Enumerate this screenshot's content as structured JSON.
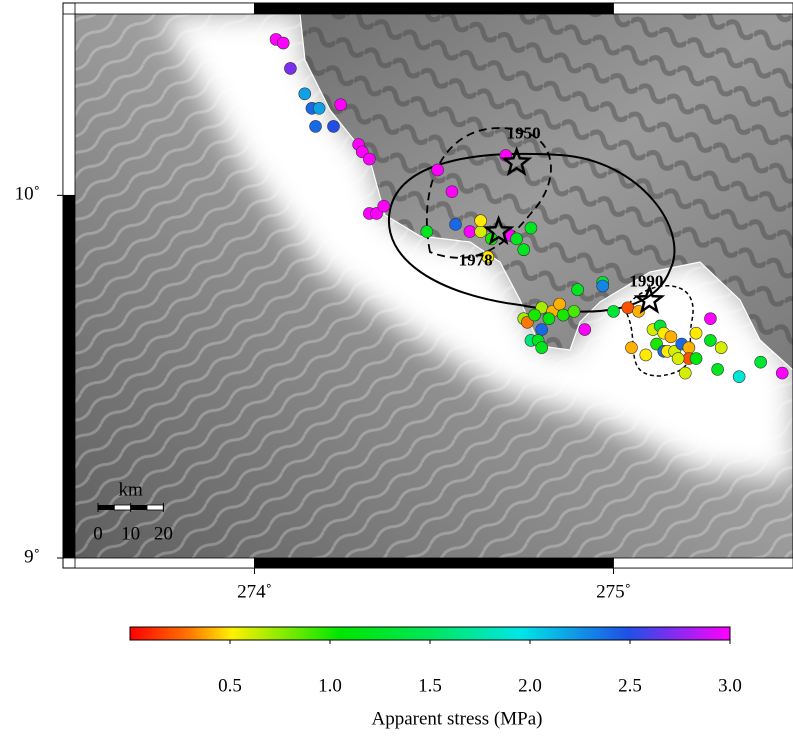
{
  "chart_data": {
    "type": "scatter",
    "xlim": [
      273.5,
      275.5
    ],
    "ylim": [
      9,
      10.5
    ],
    "xticks": [
      {
        "value": 274,
        "label": "274˚"
      },
      {
        "value": 275,
        "label": "275˚"
      }
    ],
    "yticks": [
      {
        "value": 9,
        "label": "9˚"
      },
      {
        "value": 10,
        "label": "10˚"
      }
    ],
    "x": [
      274.06,
      274.08,
      274.1,
      274.14,
      274.16,
      274.18,
      274.17,
      274.22,
      274.24,
      274.29,
      274.3,
      274.32,
      274.32,
      274.34,
      274.36,
      274.51,
      274.55,
      274.7,
      274.56,
      274.48,
      274.6,
      274.63,
      274.63,
      274.66,
      274.71,
      274.73,
      274.75,
      274.77,
      274.65,
      274.97,
      274.9,
      274.97,
      274.8,
      274.83,
      274.85,
      274.86,
      274.89,
      274.75,
      274.76,
      274.78,
      274.8,
      274.82,
      274.77,
      274.79,
      274.8,
      274.92,
      275.0,
      275.04,
      275.07,
      275.05,
      275.11,
      275.13,
      275.14,
      275.16,
      275.12,
      275.14,
      275.15,
      275.17,
      275.19,
      275.21,
      275.23,
      275.21,
      275.23,
      275.2,
      275.27,
      275.27,
      275.3,
      275.29,
      275.35,
      275.41,
      275.47,
      275.09,
      275.18
    ],
    "y": [
      10.43,
      10.42,
      10.35,
      10.28,
      10.24,
      10.24,
      10.19,
      10.19,
      10.25,
      10.14,
      10.12,
      10.1,
      9.95,
      9.95,
      9.97,
      10.07,
      10.01,
      10.11,
      9.92,
      9.9,
      9.9,
      9.9,
      9.93,
      9.88,
      9.89,
      9.88,
      9.85,
      9.91,
      9.83,
      9.76,
      9.74,
      9.75,
      9.69,
      9.68,
      9.7,
      9.67,
      9.68,
      9.66,
      9.65,
      9.67,
      9.63,
      9.66,
      9.6,
      9.6,
      9.58,
      9.63,
      9.68,
      9.69,
      9.68,
      9.58,
      9.63,
      9.64,
      9.62,
      9.61,
      9.59,
      9.57,
      9.57,
      9.57,
      9.59,
      9.58,
      9.62,
      9.55,
      9.55,
      9.51,
      9.66,
      9.6,
      9.58,
      9.52,
      9.5,
      9.54,
      9.51,
      9.56,
      9.55
    ],
    "values": [
      3.0,
      3.0,
      2.7,
      2.2,
      2.4,
      2.2,
      2.4,
      2.5,
      3.0,
      3.0,
      3.0,
      3.0,
      3.0,
      3.0,
      3.0,
      3.0,
      3.0,
      3.0,
      2.4,
      1.2,
      3.0,
      0.6,
      0.5,
      1.0,
      3.0,
      1.2,
      1.2,
      1.2,
      0.5,
      1.3,
      1.2,
      2.3,
      0.7,
      0.4,
      0.4,
      1.0,
      0.9,
      0.7,
      0.3,
      1.0,
      2.4,
      1.1,
      1.6,
      1.2,
      1.2,
      3.0,
      1.3,
      0.2,
      0.4,
      0.4,
      0.6,
      1.3,
      0.5,
      0.4,
      1.0,
      2.4,
      0.5,
      0.6,
      2.4,
      0.4,
      0.5,
      0.2,
      1.1,
      0.6,
      3.0,
      1.2,
      0.6,
      1.2,
      1.9,
      1.3,
      3.0,
      0.5,
      0.6
    ],
    "events": [
      {
        "label": "1950",
        "lon": 274.73,
        "lat": 10.09
      },
      {
        "label": "1978",
        "lon": 274.68,
        "lat": 9.9
      },
      {
        "label": "1990",
        "lon": 275.1,
        "lat": 9.71
      }
    ],
    "scale_bar": {
      "unit": "km",
      "ticks": [
        0,
        10,
        20
      ]
    },
    "colorbar": {
      "label": "Apparent stress (MPa)",
      "lim": [
        0,
        3
      ],
      "ticks": [
        0.5,
        {
          "value": 1,
          "label": "1.0"
        },
        1.5,
        {
          "value": 2,
          "label": "2.0"
        },
        2.5,
        {
          "value": 3,
          "label": "3.0"
        }
      ]
    }
  }
}
